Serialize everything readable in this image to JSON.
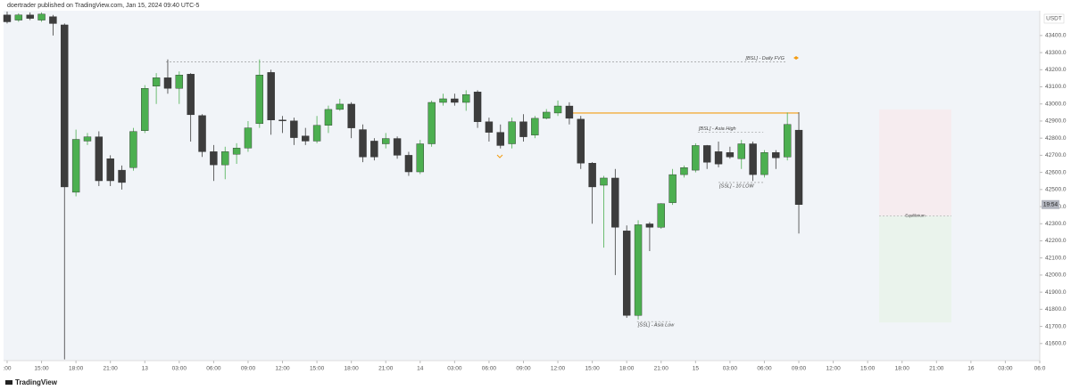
{
  "chart_data": {
    "type": "candlestick",
    "header": "doertrader published on TradingView.com, Jan 15, 2024 09:40 UTC-5",
    "footer": "TradingView",
    "y_unit": "USDT",
    "countdown": "19:54",
    "up_color": "#4caf50",
    "down_color": "#3d3d3d",
    "x": [
      0,
      1,
      2,
      3,
      4,
      5,
      6,
      7,
      8,
      9,
      10,
      11,
      12,
      13,
      14,
      15,
      16,
      17,
      18,
      19,
      20,
      21,
      22,
      23,
      24,
      25,
      26,
      27,
      28,
      29,
      30,
      31,
      32,
      33,
      34,
      35,
      36,
      37,
      38,
      39,
      40,
      41,
      42,
      43,
      44,
      45,
      46,
      47,
      48,
      49,
      50,
      51,
      52,
      53,
      54,
      55,
      56,
      57,
      58,
      59,
      60,
      61,
      62,
      63,
      64,
      65,
      66,
      67,
      68,
      69
    ],
    "open": [
      43520,
      43490,
      43520,
      43490,
      43510,
      43462,
      42484,
      42783,
      42808,
      42680,
      42613,
      42628,
      42844,
      43104,
      43153,
      43091,
      43174,
      42932,
      42721,
      42644,
      42706,
      42742,
      42885,
      43184,
      42906,
      42901,
      42813,
      42783,
      42875,
      42968,
      42999,
      42850,
      42783,
      42767,
      42798,
      42700,
      42603,
      42767,
      43009,
      43030,
      43009,
      43070,
      42896,
      42834,
      42767,
      42896,
      42818,
      42916,
      42947,
      42988,
      42911,
      42654,
      42525,
      42567,
      42258,
      41764,
      42299,
      42279,
      42423,
      42587,
      42613,
      42757,
      42721,
      42716,
      42680,
      42767,
      42587,
      42716,
      42690,
      42847
    ],
    "high": [
      43540,
      43530,
      43535,
      43535,
      43520,
      43470,
      42850,
      42830,
      42840,
      42700,
      42640,
      42860,
      43110,
      43180,
      43260,
      43190,
      43180,
      42940,
      42760,
      42750,
      42770,
      42900,
      43260,
      43200,
      42930,
      42920,
      42860,
      42930,
      42990,
      43030,
      43010,
      42880,
      42800,
      42830,
      42810,
      42720,
      42790,
      43020,
      43060,
      43060,
      43080,
      43080,
      42920,
      42880,
      42920,
      42940,
      42930,
      42970,
      43020,
      43010,
      42930,
      42660,
      42580,
      42620,
      42290,
      42320,
      42310,
      42420,
      42620,
      42640,
      42770,
      42760,
      42780,
      42750,
      42790,
      42780,
      42730,
      42730,
      42950,
      42952
    ],
    "low": [
      43470,
      43480,
      43490,
      43480,
      43400,
      41507,
      42460,
      42760,
      42520,
      42520,
      42500,
      42610,
      42830,
      43000,
      43060,
      43000,
      42780,
      42690,
      42550,
      42560,
      42650,
      42720,
      42860,
      42820,
      42830,
      42760,
      42760,
      42770,
      42830,
      42960,
      42800,
      42660,
      42670,
      42740,
      42680,
      42580,
      42590,
      42750,
      42990,
      42990,
      42960,
      42860,
      42780,
      42740,
      42740,
      42780,
      42800,
      42910,
      42930,
      42880,
      42620,
      42300,
      42160,
      42000,
      41750,
      41740,
      42140,
      42270,
      42410,
      42570,
      42600,
      42620,
      42630,
      42680,
      42620,
      42550,
      42570,
      42620,
      42670,
      42243
    ],
    "close": [
      43480,
      43520,
      43500,
      43525,
      43470,
      42515,
      42793,
      42808,
      42551,
      42551,
      42541,
      42839,
      43091,
      43153,
      43091,
      43169,
      42937,
      42721,
      42644,
      42721,
      42742,
      42860,
      43169,
      42906,
      42901,
      42803,
      42783,
      42875,
      42968,
      42999,
      42860,
      42690,
      42690,
      42798,
      42700,
      42603,
      42767,
      43009,
      43030,
      43009,
      43055,
      42896,
      42834,
      42757,
      42896,
      42808,
      42916,
      42952,
      42988,
      42916,
      42654,
      42515,
      42567,
      42279,
      41764,
      42294,
      42279,
      42417,
      42587,
      42628,
      42757,
      42659,
      42649,
      42690,
      42767,
      42587,
      42716,
      42685,
      42880,
      42412
    ],
    "xlim": [
      -0.31,
      90
    ],
    "xticks": [
      {
        "value": 0,
        "label": ":00"
      },
      {
        "value": 3,
        "label": "15:00"
      },
      {
        "value": 6,
        "label": "18:00"
      },
      {
        "value": 9,
        "label": "21:00"
      },
      {
        "value": 12,
        "label": "13"
      },
      {
        "value": 15,
        "label": "03:00"
      },
      {
        "value": 18,
        "label": "06:00"
      },
      {
        "value": 21,
        "label": "09:00"
      },
      {
        "value": 24,
        "label": "12:00"
      },
      {
        "value": 27,
        "label": "15:00"
      },
      {
        "value": 30,
        "label": "18:00"
      },
      {
        "value": 33,
        "label": "21:00"
      },
      {
        "value": 36,
        "label": "14"
      },
      {
        "value": 39,
        "label": "03:00"
      },
      {
        "value": 42,
        "label": "06:00"
      },
      {
        "value": 45,
        "label": "09:00"
      },
      {
        "value": 48,
        "label": "12:00"
      },
      {
        "value": 51,
        "label": "15:00"
      },
      {
        "value": 54,
        "label": "18:00"
      },
      {
        "value": 57,
        "label": "21:00"
      },
      {
        "value": 60,
        "label": "15"
      },
      {
        "value": 63,
        "label": "03:00"
      },
      {
        "value": 66,
        "label": "06:00"
      },
      {
        "value": 69,
        "label": "09:00"
      },
      {
        "value": 72,
        "label": "12:00"
      },
      {
        "value": 75,
        "label": "15:00"
      },
      {
        "value": 78,
        "label": "18:00"
      },
      {
        "value": 81,
        "label": "21:00"
      },
      {
        "value": 84,
        "label": "16"
      },
      {
        "value": 87,
        "label": "03:00"
      },
      {
        "value": 90,
        "label": "06:0"
      }
    ],
    "ylim": [
      41500,
      43545
    ],
    "yticks": [
      {
        "value": 41600,
        "label": "41600.0"
      },
      {
        "value": 41700,
        "label": "41700.0"
      },
      {
        "value": 41800,
        "label": "41800.0"
      },
      {
        "value": 41900,
        "label": "41900.0"
      },
      {
        "value": 42000,
        "label": "42000.0"
      },
      {
        "value": 42100,
        "label": "42100.0"
      },
      {
        "value": 42200,
        "label": "42200.0"
      },
      {
        "value": 42300,
        "label": "42300.0"
      },
      {
        "value": 42400,
        "label": "42400.0"
      },
      {
        "value": 42500,
        "label": "42500.0"
      },
      {
        "value": 42600,
        "label": "42600.0"
      },
      {
        "value": 42700,
        "label": "42700.0"
      },
      {
        "value": 42800,
        "label": "42800.0"
      },
      {
        "value": 42900,
        "label": "42900.0"
      },
      {
        "value": 43000,
        "label": "43000.0"
      },
      {
        "value": 43100,
        "label": "43100.0"
      },
      {
        "value": 43200,
        "label": "43200.0"
      },
      {
        "value": 43300,
        "label": "43300.0"
      },
      {
        "value": 43400,
        "label": "43400.0"
      }
    ],
    "levels": [
      {
        "label": "[BSL] - Daily FVG",
        "value": 43245,
        "x_from": 13.85,
        "x_to": 67.9
      },
      {
        "label": "[BSL] - Asia High",
        "value": 42834,
        "x_from": 60.2,
        "x_to": 65.9
      },
      {
        "label": "[SSL] - 10 LOW",
        "value": 42541,
        "x_from": 62.0,
        "x_to": 65.9
      },
      {
        "label": "[SSL] - Asia Low",
        "value": 41728,
        "x_from": 54.9,
        "x_to": 57.8
      }
    ],
    "key_level": {
      "value": 42947,
      "x_from": 48.9,
      "x_to": 69.0,
      "color": "#f39c12"
    },
    "zone": {
      "label": "Equilibrium",
      "top": 42968,
      "bottom": 41723,
      "equilibrium": 42346,
      "x_from": 76.0,
      "x_to": 82.3
    }
  }
}
